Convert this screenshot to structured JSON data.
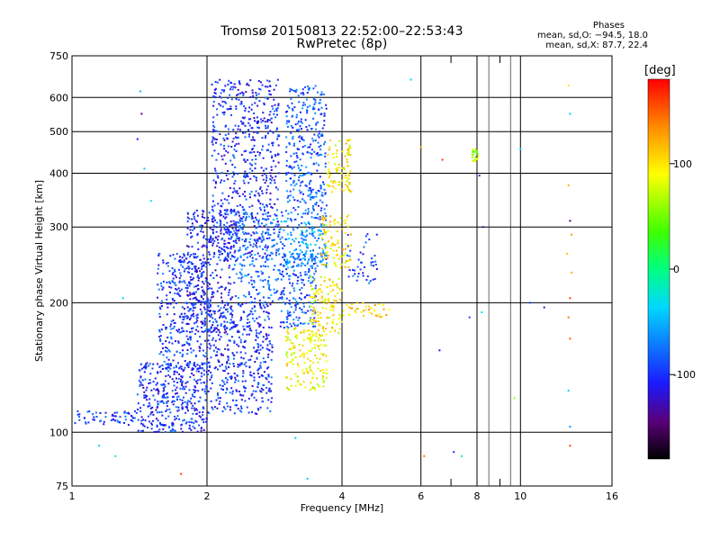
{
  "chart_data": {
    "type": "scatter",
    "title": "Tromsø 20150813 22:52:00–22:53:43",
    "subtitle": "RwPretec (8p)",
    "xlabel": "Frequency [MHz]",
    "ylabel": "Stationary phase Virtual Height [km]",
    "x_scale": "log",
    "y_scale": "log",
    "xlim": [
      1,
      16
    ],
    "ylim": [
      75,
      750
    ],
    "x_ticks": [
      1,
      2,
      4,
      6,
      8,
      10,
      16
    ],
    "y_ticks": [
      75,
      100,
      200,
      300,
      400,
      500,
      600,
      750
    ],
    "grid": true,
    "colorbar": {
      "label": "[deg]",
      "range": [
        -180,
        180
      ],
      "ticks": [
        100,
        0,
        -100
      ],
      "colormap": "rainbow"
    },
    "stats": {
      "title": "Phases",
      "o_line": "mean, sd,O: −94.5, 18.0",
      "x_line": "mean, sd,X:  87.7, 22.4"
    },
    "clusters": [
      {
        "f_min": 1.0,
        "f_max": 1.4,
        "h_min": 104,
        "h_max": 112,
        "phase": -95,
        "n": 60
      },
      {
        "f_min": 1.4,
        "f_max": 2.0,
        "h_min": 100,
        "h_max": 145,
        "phase": -100,
        "n": 380
      },
      {
        "f_min": 1.55,
        "f_max": 2.0,
        "h_min": 140,
        "h_max": 260,
        "phase": -95,
        "n": 320
      },
      {
        "f_min": 1.8,
        "f_max": 2.3,
        "h_min": 170,
        "h_max": 330,
        "phase": -105,
        "n": 360
      },
      {
        "f_min": 2.0,
        "f_max": 2.8,
        "h_min": 110,
        "h_max": 200,
        "phase": -100,
        "n": 420
      },
      {
        "f_min": 2.05,
        "f_max": 2.9,
        "h_min": 250,
        "h_max": 660,
        "phase": -100,
        "n": 620
      },
      {
        "f_min": 2.3,
        "f_max": 3.0,
        "h_min": 200,
        "h_max": 330,
        "phase": -75,
        "n": 220
      },
      {
        "f_min": 3.0,
        "f_max": 3.7,
        "h_min": 310,
        "h_max": 640,
        "phase": -85,
        "n": 330
      },
      {
        "f_min": 3.0,
        "f_max": 3.7,
        "h_min": 240,
        "h_max": 310,
        "phase": -60,
        "n": 160
      },
      {
        "f_min": 2.9,
        "f_max": 3.5,
        "h_min": 175,
        "h_max": 260,
        "phase": -85,
        "n": 180
      },
      {
        "f_min": 3.0,
        "f_max": 3.7,
        "h_min": 125,
        "h_max": 175,
        "phase": 90,
        "n": 160
      },
      {
        "f_min": 3.4,
        "f_max": 4.0,
        "h_min": 170,
        "h_max": 230,
        "phase": 95,
        "n": 120
      },
      {
        "f_min": 3.6,
        "f_max": 4.2,
        "h_min": 240,
        "h_max": 320,
        "phase": 100,
        "n": 90
      },
      {
        "f_min": 3.7,
        "f_max": 4.2,
        "h_min": 360,
        "h_max": 480,
        "phase": 95,
        "n": 90
      },
      {
        "f_min": 4.0,
        "f_max": 5.1,
        "h_min": 185,
        "h_max": 200,
        "phase": 110,
        "n": 40
      },
      {
        "f_min": 4.1,
        "f_max": 4.8,
        "h_min": 220,
        "h_max": 290,
        "phase": -90,
        "n": 45
      },
      {
        "f_min": 7.8,
        "f_max": 8.1,
        "h_min": 425,
        "h_max": 455,
        "phase": 70,
        "n": 24
      }
    ],
    "sparse_points": [
      {
        "f": 1.15,
        "h": 93,
        "phase": -40
      },
      {
        "f": 1.25,
        "h": 88,
        "phase": -10
      },
      {
        "f": 1.3,
        "h": 205,
        "phase": -40
      },
      {
        "f": 1.42,
        "h": 620,
        "phase": -50
      },
      {
        "f": 1.43,
        "h": 550,
        "phase": -140
      },
      {
        "f": 1.4,
        "h": 480,
        "phase": -110
      },
      {
        "f": 1.45,
        "h": 410,
        "phase": -40
      },
      {
        "f": 1.5,
        "h": 345,
        "phase": -30
      },
      {
        "f": 1.75,
        "h": 80,
        "phase": 160
      },
      {
        "f": 3.15,
        "h": 97,
        "phase": -40
      },
      {
        "f": 3.35,
        "h": 78,
        "phase": -40
      },
      {
        "f": 5.7,
        "h": 660,
        "phase": -40
      },
      {
        "f": 6.0,
        "h": 460,
        "phase": 120
      },
      {
        "f": 6.1,
        "h": 88,
        "phase": 140
      },
      {
        "f": 6.6,
        "h": 155,
        "phase": -110
      },
      {
        "f": 6.7,
        "h": 430,
        "phase": 160
      },
      {
        "f": 7.1,
        "h": 90,
        "phase": -100
      },
      {
        "f": 7.4,
        "h": 88,
        "phase": -10
      },
      {
        "f": 7.7,
        "h": 185,
        "phase": -90
      },
      {
        "f": 8.1,
        "h": 395,
        "phase": -100
      },
      {
        "f": 8.25,
        "h": 300,
        "phase": -130
      },
      {
        "f": 8.2,
        "h": 190,
        "phase": -30
      },
      {
        "f": 9.7,
        "h": 120,
        "phase": 60
      },
      {
        "f": 10.0,
        "h": 455,
        "phase": -40
      },
      {
        "f": 10.5,
        "h": 200,
        "phase": -90
      },
      {
        "f": 11.3,
        "h": 195,
        "phase": -120
      },
      {
        "f": 12.8,
        "h": 640,
        "phase": 100
      },
      {
        "f": 12.9,
        "h": 550,
        "phase": -40
      },
      {
        "f": 12.8,
        "h": 375,
        "phase": 120
      },
      {
        "f": 12.9,
        "h": 310,
        "phase": -140
      },
      {
        "f": 12.7,
        "h": 260,
        "phase": 110
      },
      {
        "f": 12.9,
        "h": 205,
        "phase": 160
      },
      {
        "f": 12.8,
        "h": 185,
        "phase": 140
      },
      {
        "f": 12.9,
        "h": 165,
        "phase": 150
      },
      {
        "f": 12.8,
        "h": 125,
        "phase": -40
      },
      {
        "f": 12.9,
        "h": 103,
        "phase": -60
      },
      {
        "f": 12.9,
        "h": 93,
        "phase": 160
      },
      {
        "f": 13.0,
        "h": 288,
        "phase": 130
      },
      {
        "f": 13.0,
        "h": 235,
        "phase": 120
      }
    ]
  }
}
